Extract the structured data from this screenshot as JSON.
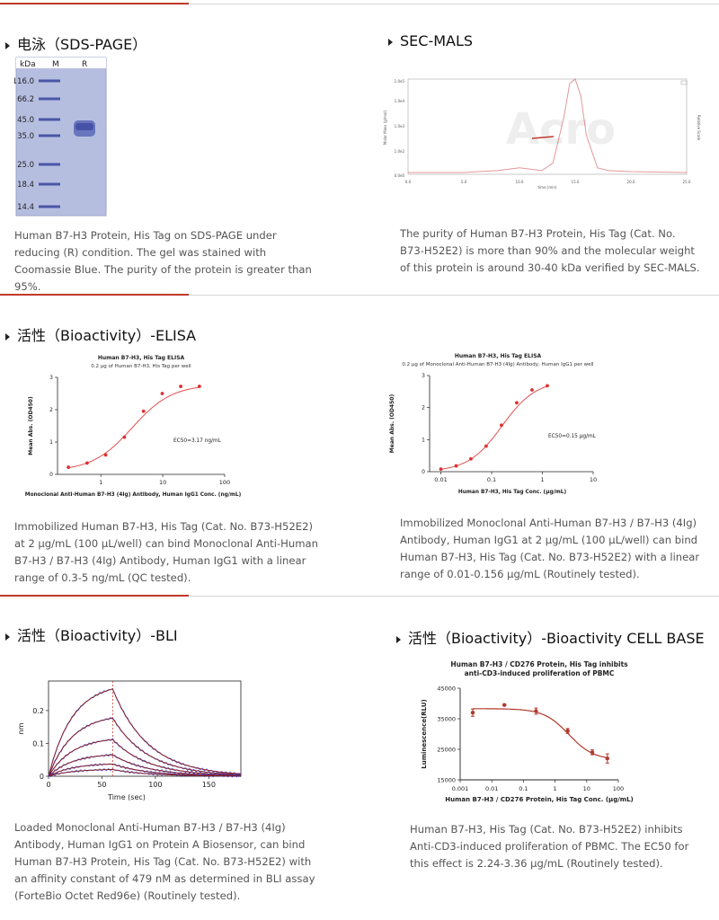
{
  "sections": {
    "sds": {
      "title": "电泳（SDS-PAGE）",
      "desc": "Human B7-H3 Protein, His Tag on SDS-PAGE under reducing (R) condition. The gel was stained with Coomassie Blue. The purity of the protein is greater than 95%.",
      "gel": {
        "headers": [
          "kDa",
          "M",
          "R"
        ],
        "markers": [
          "116.0",
          "66.2",
          "45.0",
          "35.0",
          "25.0",
          "18.4",
          "14.4"
        ]
      }
    },
    "secmals": {
      "title": "SEC-MALS",
      "desc": "The purity of Human B7-H3 Protein, His Tag (Cat. No. B73-H52E2) is more than 90% and the molecular weight of this protein is around 30-40 kDa verified by SEC-MALS.",
      "chart_data": {
        "type": "line",
        "xlabel": "time (min)",
        "ylabel": "Molar Mass (g/mol)",
        "ylabel_right": "Relative Scale",
        "xticks": [
          "0.0",
          "5.0",
          "10.0",
          "15.0",
          "20.0",
          "25.0"
        ],
        "yticks": [
          "1.0e5",
          "1.0e4",
          "1.0e3",
          "1.0e2"
        ],
        "ybottom": "0.0e0",
        "watermark": "Acro",
        "x": [
          0,
          5,
          8,
          10,
          12,
          13,
          14,
          14.5,
          15,
          15.5,
          16,
          17,
          18,
          20,
          25
        ],
        "values": [
          0,
          0,
          0.02,
          0.05,
          0.02,
          0.1,
          0.6,
          0.95,
          1.0,
          0.82,
          0.4,
          0.05,
          0.02,
          0.01,
          0
        ]
      }
    },
    "elisa1": {
      "title": "活性（Bioactivity）-ELISA",
      "desc": "Immobilized Human B7-H3, His Tag (Cat. No. B73-H52E2) at 2 μg/mL (100 μL/well) can bind Monoclonal Anti-Human B7-H3 / B7-H3 (4Ig) Antibody, Human IgG1 with a linear range of 0.3-5 ng/mL (QC tested).",
      "chart_data": {
        "type": "scatter",
        "title": "Human B7-H3, His Tag ELISA",
        "subtitle": "0.2 μg of Human B7-H3, His Tag per well",
        "xlabel": "Monoclonal Anti-Human B7-H3 (4Ig) Antibody, Human IgG1 Conc. (ng/mL)",
        "ylabel": "Mean Abs. (OD450)",
        "xscale": "log",
        "xticks": [
          "1",
          "10",
          "100"
        ],
        "yticks": [
          "0",
          "1",
          "2",
          "3"
        ],
        "ylim": [
          0,
          3
        ],
        "annotation": "EC50=3.17 ng/mL",
        "x": [
          0.3,
          0.6,
          1.2,
          2.4,
          4.9,
          9.8,
          19.5,
          39
        ],
        "values": [
          0.22,
          0.35,
          0.6,
          1.15,
          1.95,
          2.5,
          2.72,
          2.72
        ]
      }
    },
    "elisa2": {
      "desc": "Immobilized Monoclonal Anti-Human B7-H3 / B7-H3 (4Ig) Antibody, Human IgG1 at 2 μg/mL (100 μL/well) can bind Human B7-H3, His Tag (Cat. No. B73-H52E2) with a linear range of 0.01-0.156 μg/mL (Routinely tested).",
      "chart_data": {
        "type": "scatter",
        "title": "Human B7-H3, His Tag ELISA",
        "subtitle": "0.2 μg of Monoclonal Anti-Human B7-H3 (4Ig) Antibody, Human IgG1 per well",
        "xlabel": "Human B7-H3, His Tag Conc. (μg/mL)",
        "ylabel": "Mean Abs. (OD450)",
        "xscale": "log",
        "xticks": [
          "0.01",
          "0.1",
          "1",
          "10"
        ],
        "yticks": [
          "0",
          "1",
          "2",
          "3"
        ],
        "ylim": [
          0,
          3
        ],
        "annotation": "EC50=0.15 μg/mL",
        "x": [
          0.01,
          0.02,
          0.039,
          0.078,
          0.156,
          0.312,
          0.625,
          1.25
        ],
        "values": [
          0.08,
          0.18,
          0.4,
          0.8,
          1.45,
          2.15,
          2.55,
          2.68
        ]
      }
    },
    "bli": {
      "title": "活性（Bioactivity）-BLI",
      "desc": "Loaded Monoclonal Anti-Human B7-H3 / B7-H3 (4Ig) Antibody, Human IgG1 on Protein A Biosensor, can bind Human B7-H3 Protein, His Tag (Cat. No. B73-H52E2) with an affinity constant of 479 nM as determined in BLI assay (ForteBio Octet Red96e) (Routinely tested).",
      "chart_data": {
        "type": "line",
        "xlabel": "Time (sec)",
        "ylabel": "nm",
        "xticks": [
          "0",
          "50",
          "100",
          "150"
        ],
        "yticks": [
          "0",
          "0.1",
          "0.2"
        ],
        "xlim": [
          0,
          180
        ],
        "ylim": [
          0,
          0.29
        ],
        "dissociation_start": 60,
        "series": [
          {
            "plateau": 0.285
          },
          {
            "plateau": 0.19
          },
          {
            "plateau": 0.12
          },
          {
            "plateau": 0.07
          },
          {
            "plateau": 0.04
          },
          {
            "plateau": 0.022
          }
        ]
      }
    },
    "cell": {
      "title": "活性（Bioactivity）-Bioactivity CELL BASE",
      "desc": "Human B7-H3, His Tag (Cat. No. B73-H52E2) inhibits Anti-CD3-induced proliferation of PBMC. The EC50 for this effect is 2.24-3.36 μg/mL (Routinely tested).",
      "chart_data": {
        "type": "scatter",
        "title": "Human B7-H3 / CD276 Protein, His Tag  inhibits",
        "subtitle": "anti-CD3-induced proliferation of PBMC",
        "xlabel": "Human B7-H3 / CD276 Protein, His Tag Conc. (μg/mL)",
        "ylabel": "Luminescence(RLU)",
        "xscale": "log",
        "xticks": [
          "0.001",
          "0.01",
          "0.1",
          "1",
          "10",
          "100"
        ],
        "yticks": [
          "15000",
          "25000",
          "35000",
          "45000"
        ],
        "ylim": [
          15000,
          45000
        ],
        "x": [
          0.0025,
          0.025,
          0.25,
          2.5,
          15,
          45
        ],
        "values": [
          37000,
          39500,
          37500,
          31000,
          24000,
          22000
        ],
        "errors": [
          1200,
          200,
          1000,
          800,
          800,
          1500
        ]
      }
    }
  }
}
